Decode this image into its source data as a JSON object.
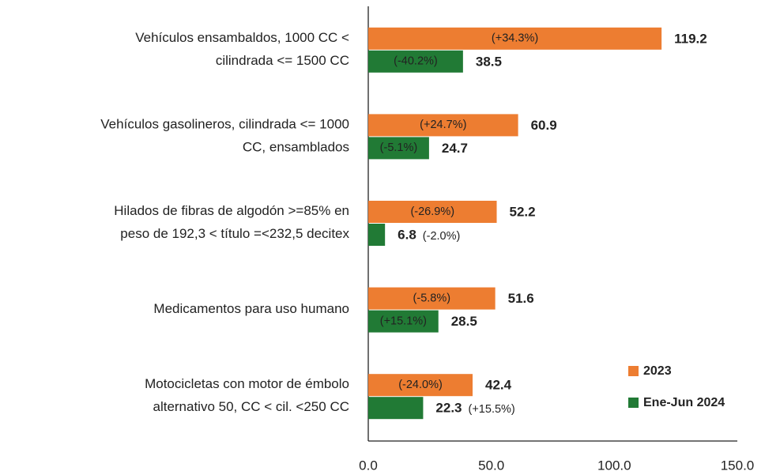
{
  "chart_data": {
    "type": "barh",
    "categories": [
      [
        "Vehículos ensambaldos, 1000 CC <",
        "cilindrada <= 1500 CC"
      ],
      [
        "Vehículos gasolineros, cilindrada <= 1000",
        "CC, ensamblados"
      ],
      [
        "Hilados de fibras de algodón >=85% en",
        "peso de 192,3 < título =<232,5 decitex"
      ],
      [
        "Medicamentos para uso humano"
      ],
      [
        "Motocicletas con motor de émbolo",
        "alternativo 50, CC < cil. <250 CC"
      ]
    ],
    "series": [
      {
        "name": "2023",
        "color": "#ed7d31",
        "values": [
          119.2,
          60.9,
          52.2,
          51.6,
          42.4
        ],
        "annotations": [
          "(+34.3%)",
          "(+24.7%)",
          "(-26.9%)",
          "(-5.8%)",
          "(-24.0%)"
        ]
      },
      {
        "name": "Ene-Jun 2024",
        "color": "#217a35",
        "values": [
          38.5,
          24.7,
          6.8,
          28.5,
          22.3
        ],
        "annotations": [
          "(-40.2%)",
          "(-5.1%)",
          "(-2.0%)",
          "(+15.1%)",
          "(+15.5%)"
        ]
      }
    ],
    "xlim": [
      0,
      150
    ],
    "xticks": [
      {
        "value": 0,
        "label": "0.0"
      },
      {
        "value": 50,
        "label": "50.0"
      },
      {
        "value": 100,
        "label": "100.0"
      },
      {
        "value": 150,
        "label": "150.0"
      }
    ],
    "legend": "lower right"
  }
}
